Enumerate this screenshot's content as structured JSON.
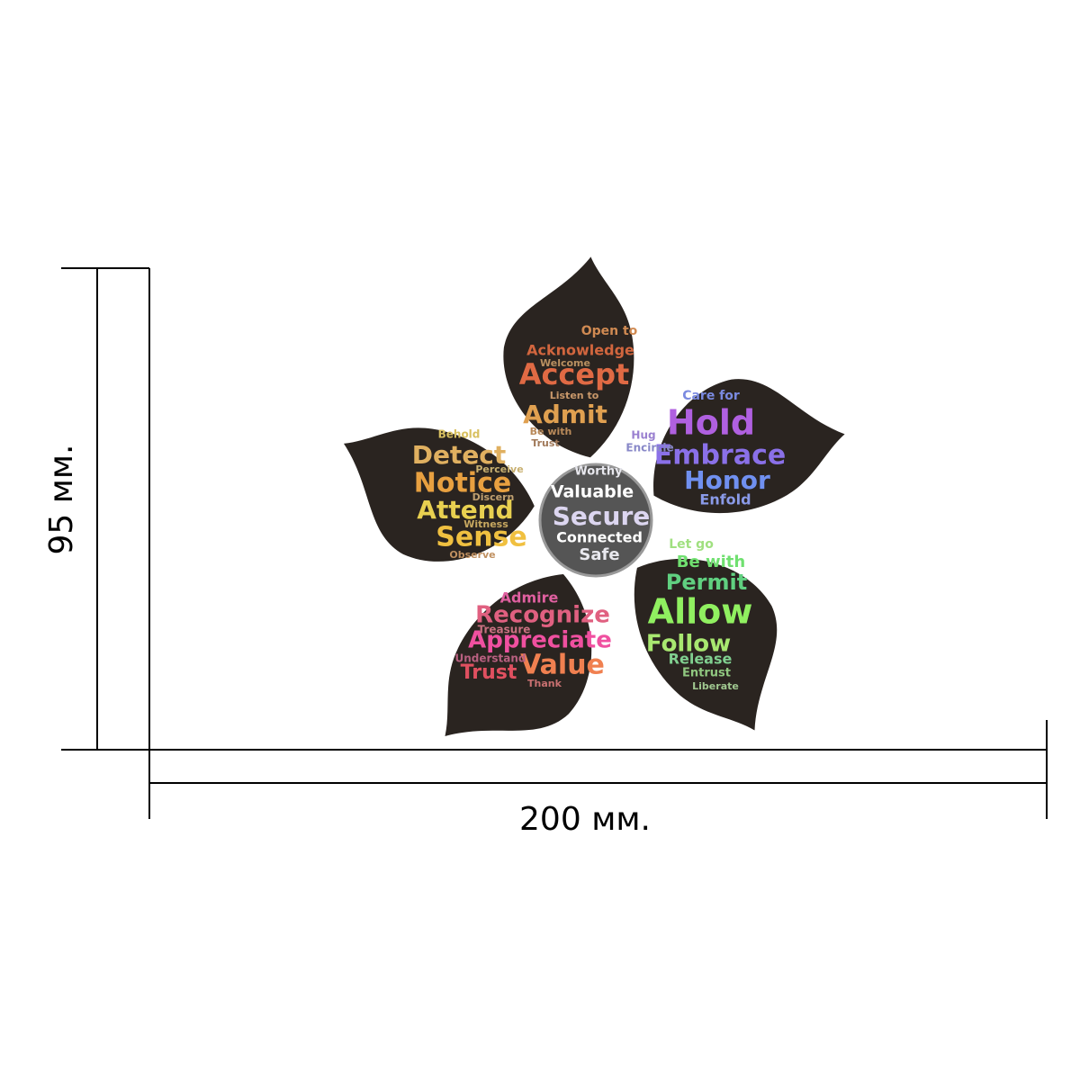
{
  "dimensions": {
    "height": "95 мм.",
    "width": "200 мм."
  },
  "artwork": {
    "petal_color": "#2a2420",
    "center": {
      "color": "#555555",
      "words": [
        {
          "text": "Worthy",
          "color": "#e8e8ee"
        },
        {
          "text": "Valuable",
          "color": "#ffffff"
        },
        {
          "text": "Secure",
          "color": "#dcd6f0"
        },
        {
          "text": "Connected",
          "color": "#ffffff"
        },
        {
          "text": "Safe",
          "color": "#e8e8ee"
        }
      ]
    },
    "petals": [
      {
        "words": [
          {
            "text": "Open to",
            "color": "#d08a52"
          },
          {
            "text": "Acknowledge",
            "color": "#d2663e"
          },
          {
            "text": "Welcome",
            "color": "#b99060"
          },
          {
            "text": "Accept",
            "color": "#e06a44"
          },
          {
            "text": "Listen to",
            "color": "#c9986a"
          },
          {
            "text": "Admit",
            "color": "#e0a050"
          },
          {
            "text": "Be with",
            "color": "#b98a5a"
          },
          {
            "text": "Trust",
            "color": "#a07858"
          }
        ]
      },
      {
        "words": [
          {
            "text": "Care for",
            "color": "#7a8ae0"
          },
          {
            "text": "Hold",
            "color": "#b060e0"
          },
          {
            "text": "Embrace",
            "color": "#8a70e8"
          },
          {
            "text": "Honor",
            "color": "#7090f0"
          },
          {
            "text": "Enfold",
            "color": "#8a9ae8"
          },
          {
            "text": "Hug",
            "color": "#9a80d0"
          },
          {
            "text": "Encircle",
            "color": "#8888c8"
          }
        ]
      },
      {
        "words": [
          {
            "text": "Let go",
            "color": "#a0e080"
          },
          {
            "text": "Be with",
            "color": "#70e070"
          },
          {
            "text": "Permit",
            "color": "#60d080"
          },
          {
            "text": "Allow",
            "color": "#90f060"
          },
          {
            "text": "Follow",
            "color": "#a8e870"
          },
          {
            "text": "Release",
            "color": "#80d090"
          },
          {
            "text": "Entrust",
            "color": "#90c880"
          },
          {
            "text": "Liberate",
            "color": "#a0c890"
          }
        ]
      },
      {
        "words": [
          {
            "text": "Admire",
            "color": "#e060a0"
          },
          {
            "text": "Recognize",
            "color": "#e06080"
          },
          {
            "text": "Appreciate",
            "color": "#f050a0"
          },
          {
            "text": "Value",
            "color": "#f08050"
          },
          {
            "text": "Trust",
            "color": "#e05060"
          },
          {
            "text": "Treasure",
            "color": "#c87080"
          },
          {
            "text": "Understand",
            "color": "#b86080"
          },
          {
            "text": "Thank",
            "color": "#c87070"
          }
        ]
      },
      {
        "words": [
          {
            "text": "Behold",
            "color": "#d8c060"
          },
          {
            "text": "Detect",
            "color": "#e0b060"
          },
          {
            "text": "Notice",
            "color": "#e8a040"
          },
          {
            "text": "Attend",
            "color": "#e8d050"
          },
          {
            "text": "Sense",
            "color": "#f0c040"
          },
          {
            "text": "Perceive",
            "color": "#c8b070"
          },
          {
            "text": "Discern",
            "color": "#c0a070"
          },
          {
            "text": "Witness",
            "color": "#c8a860"
          },
          {
            "text": "Observe",
            "color": "#c09060"
          }
        ]
      }
    ]
  }
}
